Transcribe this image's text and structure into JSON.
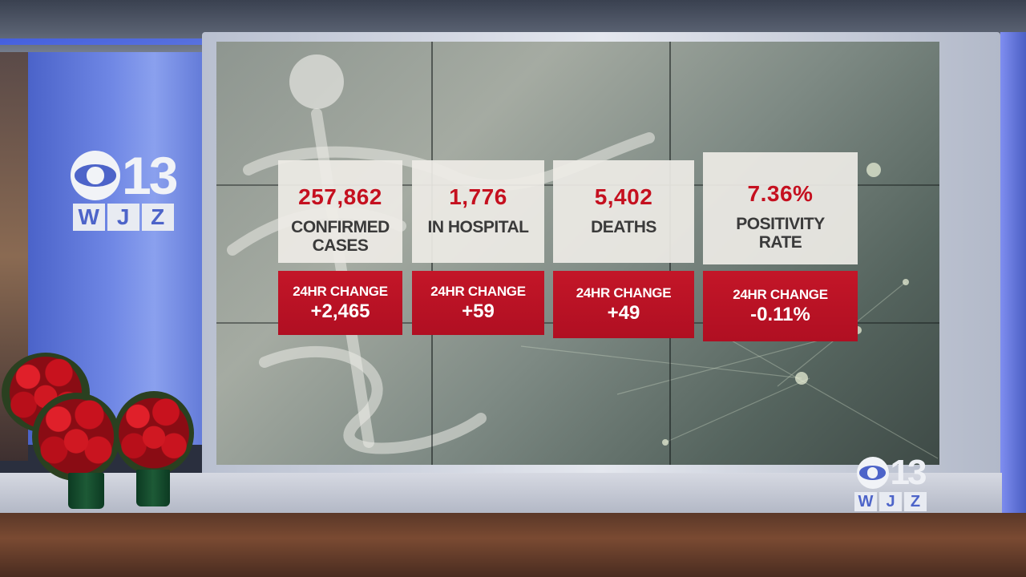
{
  "station_logo": {
    "number": "13",
    "letters": [
      "W",
      "J",
      "Z"
    ]
  },
  "stats": [
    {
      "value": "257,862",
      "label": "CONFIRMED\nCASES",
      "change_label": "24HR CHANGE",
      "change_value": "+2,465"
    },
    {
      "value": "1,776",
      "label": "IN HOSPITAL",
      "change_label": "24HR CHANGE",
      "change_value": "+59"
    },
    {
      "value": "5,402",
      "label": "DEATHS",
      "change_label": "24HR CHANGE",
      "change_value": "+49"
    },
    {
      "value": "7.36%",
      "label": "POSITIVITY\nRATE",
      "change_label": "24HR CHANGE",
      "change_value": "-0.11%"
    }
  ],
  "colors": {
    "accent_red": "#c31628",
    "logo_blue": "#4d64c9"
  },
  "icons": [
    "cbs-eye-icon",
    "caduceus-graphic",
    "poinsettia-plant"
  ]
}
